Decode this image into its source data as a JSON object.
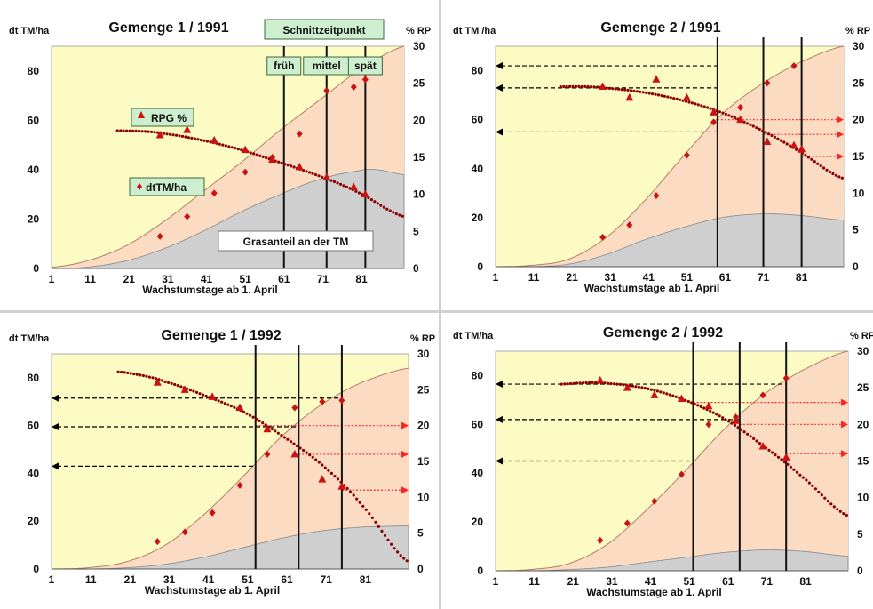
{
  "panels_meta": {
    "colors": {
      "plot_bg": "#fdfbc4",
      "area_fill": "#fbdcc3",
      "grass_fill": "#cfcfcf",
      "curve": "#8b0000",
      "marker": "#cc1111",
      "arrow_red": "#ff2222",
      "dashed": "#000000",
      "box_fill": "#cdeecf",
      "box_border": "#3a6a3a"
    }
  },
  "chart_data": [
    {
      "id": "p1",
      "type": "line",
      "title": "Gemenge 1 / 1991",
      "ylabel_left": "dt TM/ha",
      "ylabel_right": "% RP",
      "xlabel": "Wachstumstage ab 1. April",
      "xlim": [
        1,
        92
      ],
      "ylim_left": [
        0,
        90
      ],
      "ylim_right": [
        0,
        30
      ],
      "x_ticks": [
        1,
        11,
        21,
        31,
        41,
        51,
        61,
        71,
        81
      ],
      "y_ticks_left": [
        0,
        20,
        40,
        60,
        80
      ],
      "y_ticks_right": [
        0,
        5,
        10,
        15,
        20,
        25,
        30
      ],
      "header_box": "Schnittzeitpunkt",
      "cut_lines": [
        {
          "x": 61,
          "label": "früh"
        },
        {
          "x": 72,
          "label": "mittel"
        },
        {
          "x": 82,
          "label": "spät"
        }
      ],
      "legend": [
        {
          "marker": "triangle",
          "label": "RPG %"
        },
        {
          "marker": "diamond",
          "label": "dtTM/ha"
        }
      ],
      "annotations": [
        "Grasanteil an der TM"
      ],
      "dtTM_points": {
        "x": [
          29,
          36,
          43,
          51,
          58,
          65,
          72,
          79,
          82
        ],
        "y": [
          13,
          21,
          30.5,
          39,
          45,
          54.5,
          72,
          73.5,
          76.5
        ]
      },
      "dtTM_curve": {
        "x": [
          1,
          10,
          20,
          30,
          40,
          50,
          60,
          70,
          80,
          92
        ],
        "y": [
          0.5,
          3,
          9,
          19,
          31,
          43,
          56,
          68,
          80,
          90
        ]
      },
      "grass_curve": {
        "x": [
          1,
          10,
          20,
          30,
          40,
          50,
          60,
          70,
          80,
          85,
          92
        ],
        "y": [
          0,
          0.5,
          3,
          8,
          15,
          23,
          30,
          36,
          39.5,
          40,
          38
        ]
      },
      "rp_points": {
        "x": [
          29,
          36,
          43,
          51,
          58,
          65,
          72,
          79,
          82
        ],
        "y": [
          18,
          18.7,
          17.3,
          16,
          14.7,
          13.7,
          12.3,
          11,
          10
        ]
      },
      "rp_curve": {
        "x": [
          18,
          25,
          30,
          40,
          50,
          60,
          70,
          80,
          92
        ],
        "y": [
          18.6,
          18.5,
          18.2,
          17.3,
          16,
          14.3,
          12.5,
          10.3,
          7
        ]
      },
      "dashed_arrows": [],
      "red_arrows": []
    },
    {
      "id": "p2",
      "type": "line",
      "title": "Gemenge 2 / 1991",
      "ylabel_left": "dt TM /ha",
      "ylabel_right": "% RP",
      "xlabel": "Wachstumstage ab 1. April",
      "xlim": [
        1,
        92
      ],
      "ylim_left": [
        0,
        90
      ],
      "ylim_right": [
        0,
        30
      ],
      "x_ticks": [
        1,
        11,
        21,
        31,
        41,
        51,
        61,
        71,
        81
      ],
      "y_ticks_left": [
        0,
        20,
        40,
        60,
        80
      ],
      "y_ticks_right": [
        0,
        5,
        10,
        15,
        20,
        25,
        30
      ],
      "header_box": "",
      "cut_lines": [
        {
          "x": 59,
          "label": ""
        },
        {
          "x": 71,
          "label": ""
        },
        {
          "x": 81,
          "label": ""
        }
      ],
      "legend": [],
      "annotations": [],
      "dtTM_points": {
        "x": [
          29,
          36,
          43,
          51,
          58,
          65,
          72,
          79
        ],
        "y": [
          12,
          17,
          29,
          45.5,
          59,
          65,
          75,
          82
        ]
      },
      "dtTM_curve": {
        "x": [
          1,
          10,
          20,
          30,
          40,
          50,
          60,
          70,
          80,
          92
        ],
        "y": [
          0,
          0.5,
          3,
          12,
          27,
          45,
          62,
          74,
          83,
          90
        ]
      },
      "grass_curve": {
        "x": [
          1,
          10,
          20,
          30,
          40,
          50,
          60,
          70,
          80,
          92
        ],
        "y": [
          0,
          0,
          1,
          5,
          11,
          16,
          20,
          21.5,
          21,
          19
        ]
      },
      "rp_points": {
        "x": [
          29,
          36,
          43,
          51,
          58,
          65,
          72,
          79,
          81
        ],
        "y": [
          24.5,
          23,
          25.5,
          23,
          21,
          20,
          17,
          16.5,
          16
        ]
      },
      "rp_curve": {
        "x": [
          18,
          25,
          30,
          40,
          50,
          60,
          70,
          80,
          92
        ],
        "y": [
          24.5,
          24.5,
          24.3,
          23.7,
          22.6,
          21,
          18.7,
          15.8,
          12
        ]
      },
      "dashed_arrows": [
        {
          "y": 82,
          "to_x": 59,
          "dir": "left"
        },
        {
          "y": 73,
          "to_x": 59,
          "dir": "left"
        },
        {
          "y": 55,
          "to_x": 59,
          "dir": "left"
        }
      ],
      "red_arrows": [
        {
          "y_right": 20,
          "from_x": 59
        },
        {
          "y_right": 18,
          "from_x": 71
        },
        {
          "y_right": 15,
          "from_x": 81
        }
      ]
    },
    {
      "id": "p3",
      "type": "line",
      "title": "Gemenge 1 / 1992",
      "ylabel_left": "dt TM/ha",
      "ylabel_right": "% RP",
      "xlabel": "Wachstumstage ab 1. April",
      "xlim": [
        1,
        92
      ],
      "ylim_left": [
        0,
        90
      ],
      "ylim_right": [
        0,
        30
      ],
      "x_ticks": [
        1,
        11,
        21,
        31,
        41,
        51,
        61,
        71,
        81
      ],
      "y_ticks_left": [
        0,
        20,
        40,
        60,
        80
      ],
      "y_ticks_right": [
        0,
        5,
        10,
        15,
        20,
        25,
        30
      ],
      "header_box": "",
      "cut_lines": [
        {
          "x": 53,
          "label": ""
        },
        {
          "x": 64,
          "label": ""
        },
        {
          "x": 75,
          "label": ""
        }
      ],
      "legend": [],
      "annotations": [],
      "dtTM_points": {
        "x": [
          28,
          35,
          42,
          49,
          56,
          63,
          70,
          75
        ],
        "y": [
          11.5,
          15.5,
          23.5,
          35,
          48,
          67.5,
          70,
          70.5
        ]
      },
      "dtTM_curve": {
        "x": [
          1,
          10,
          20,
          30,
          40,
          50,
          60,
          70,
          80,
          92
        ],
        "y": [
          0,
          0.5,
          3,
          10,
          23,
          39,
          56,
          69,
          78,
          84
        ]
      },
      "grass_curve": {
        "x": [
          1,
          10,
          20,
          30,
          40,
          50,
          60,
          70,
          80,
          92
        ],
        "y": [
          0,
          0,
          0.5,
          2,
          5,
          9,
          13,
          16,
          17.5,
          18
        ]
      },
      "rp_points": {
        "x": [
          28,
          35,
          42,
          49,
          56,
          63,
          70,
          75
        ],
        "y": [
          26,
          25,
          24,
          22.5,
          19.5,
          16,
          12.5,
          11.5
        ]
      },
      "rp_curve": {
        "x": [
          18,
          25,
          30,
          40,
          50,
          60,
          70,
          80,
          92
        ],
        "y": [
          27.5,
          26.9,
          26.1,
          24.2,
          21.9,
          18.5,
          14.5,
          9,
          1
        ]
      },
      "dashed_arrows": [
        {
          "y": 71.5,
          "to_x": 75,
          "dir": "left"
        },
        {
          "y": 59.5,
          "to_x": 64,
          "dir": "left"
        },
        {
          "y": 43,
          "to_x": 53,
          "dir": "left"
        }
      ],
      "red_arrows": [
        {
          "y_right": 20,
          "from_x": 53
        },
        {
          "y_right": 16,
          "from_x": 64
        },
        {
          "y_right": 11,
          "from_x": 75
        }
      ]
    },
    {
      "id": "p4",
      "type": "line",
      "title": "Gemenge 2 / 1992",
      "ylabel_left": "dt TM/ha",
      "ylabel_right": "% RP",
      "xlabel": "Wachstumstage ab 1. April",
      "xlim": [
        1,
        92
      ],
      "ylim_left": [
        0,
        90
      ],
      "ylim_right": [
        0,
        30
      ],
      "x_ticks": [
        1,
        11,
        21,
        31,
        41,
        51,
        61,
        71,
        81
      ],
      "y_ticks_left": [
        0,
        20,
        40,
        60,
        80
      ],
      "y_ticks_right": [
        0,
        5,
        10,
        15,
        20,
        25,
        30
      ],
      "header_box": "",
      "cut_lines": [
        {
          "x": 52,
          "label": ""
        },
        {
          "x": 64,
          "label": ""
        },
        {
          "x": 76,
          "label": ""
        }
      ],
      "legend": [],
      "annotations": [],
      "dtTM_points": {
        "x": [
          28,
          35,
          42,
          49,
          56,
          63,
          70,
          76
        ],
        "y": [
          12.5,
          19.5,
          28.5,
          39.5,
          60,
          63,
          72,
          79
        ]
      },
      "dtTM_curve": {
        "x": [
          1,
          10,
          20,
          30,
          40,
          50,
          60,
          70,
          80,
          92
        ],
        "y": [
          0,
          0.5,
          3,
          11,
          25,
          41,
          58,
          72,
          82,
          90
        ]
      },
      "grass_curve": {
        "x": [
          1,
          10,
          20,
          30,
          40,
          50,
          60,
          70,
          80,
          92
        ],
        "y": [
          0,
          0,
          0.5,
          1.5,
          3.5,
          5.5,
          7.5,
          8.5,
          8,
          6
        ]
      },
      "rp_points": {
        "x": [
          28,
          35,
          42,
          49,
          56,
          63,
          70,
          76
        ],
        "y": [
          26,
          25,
          24,
          23.5,
          22.5,
          20.5,
          17,
          15.5
        ]
      },
      "rp_curve": {
        "x": [
          18,
          25,
          30,
          40,
          50,
          60,
          70,
          80,
          92
        ],
        "y": [
          25.5,
          25.7,
          25.6,
          24.9,
          23.3,
          20.8,
          17.1,
          12.9,
          7.5
        ]
      },
      "dashed_arrows": [
        {
          "y": 76.5,
          "to_x": 76,
          "dir": "left"
        },
        {
          "y": 62,
          "to_x": 64,
          "dir": "left"
        },
        {
          "y": 45,
          "to_x": 52,
          "dir": "left"
        }
      ],
      "red_arrows": [
        {
          "y_right": 23,
          "from_x": 52
        },
        {
          "y_right": 20,
          "from_x": 64
        },
        {
          "y_right": 16,
          "from_x": 76
        }
      ]
    }
  ]
}
